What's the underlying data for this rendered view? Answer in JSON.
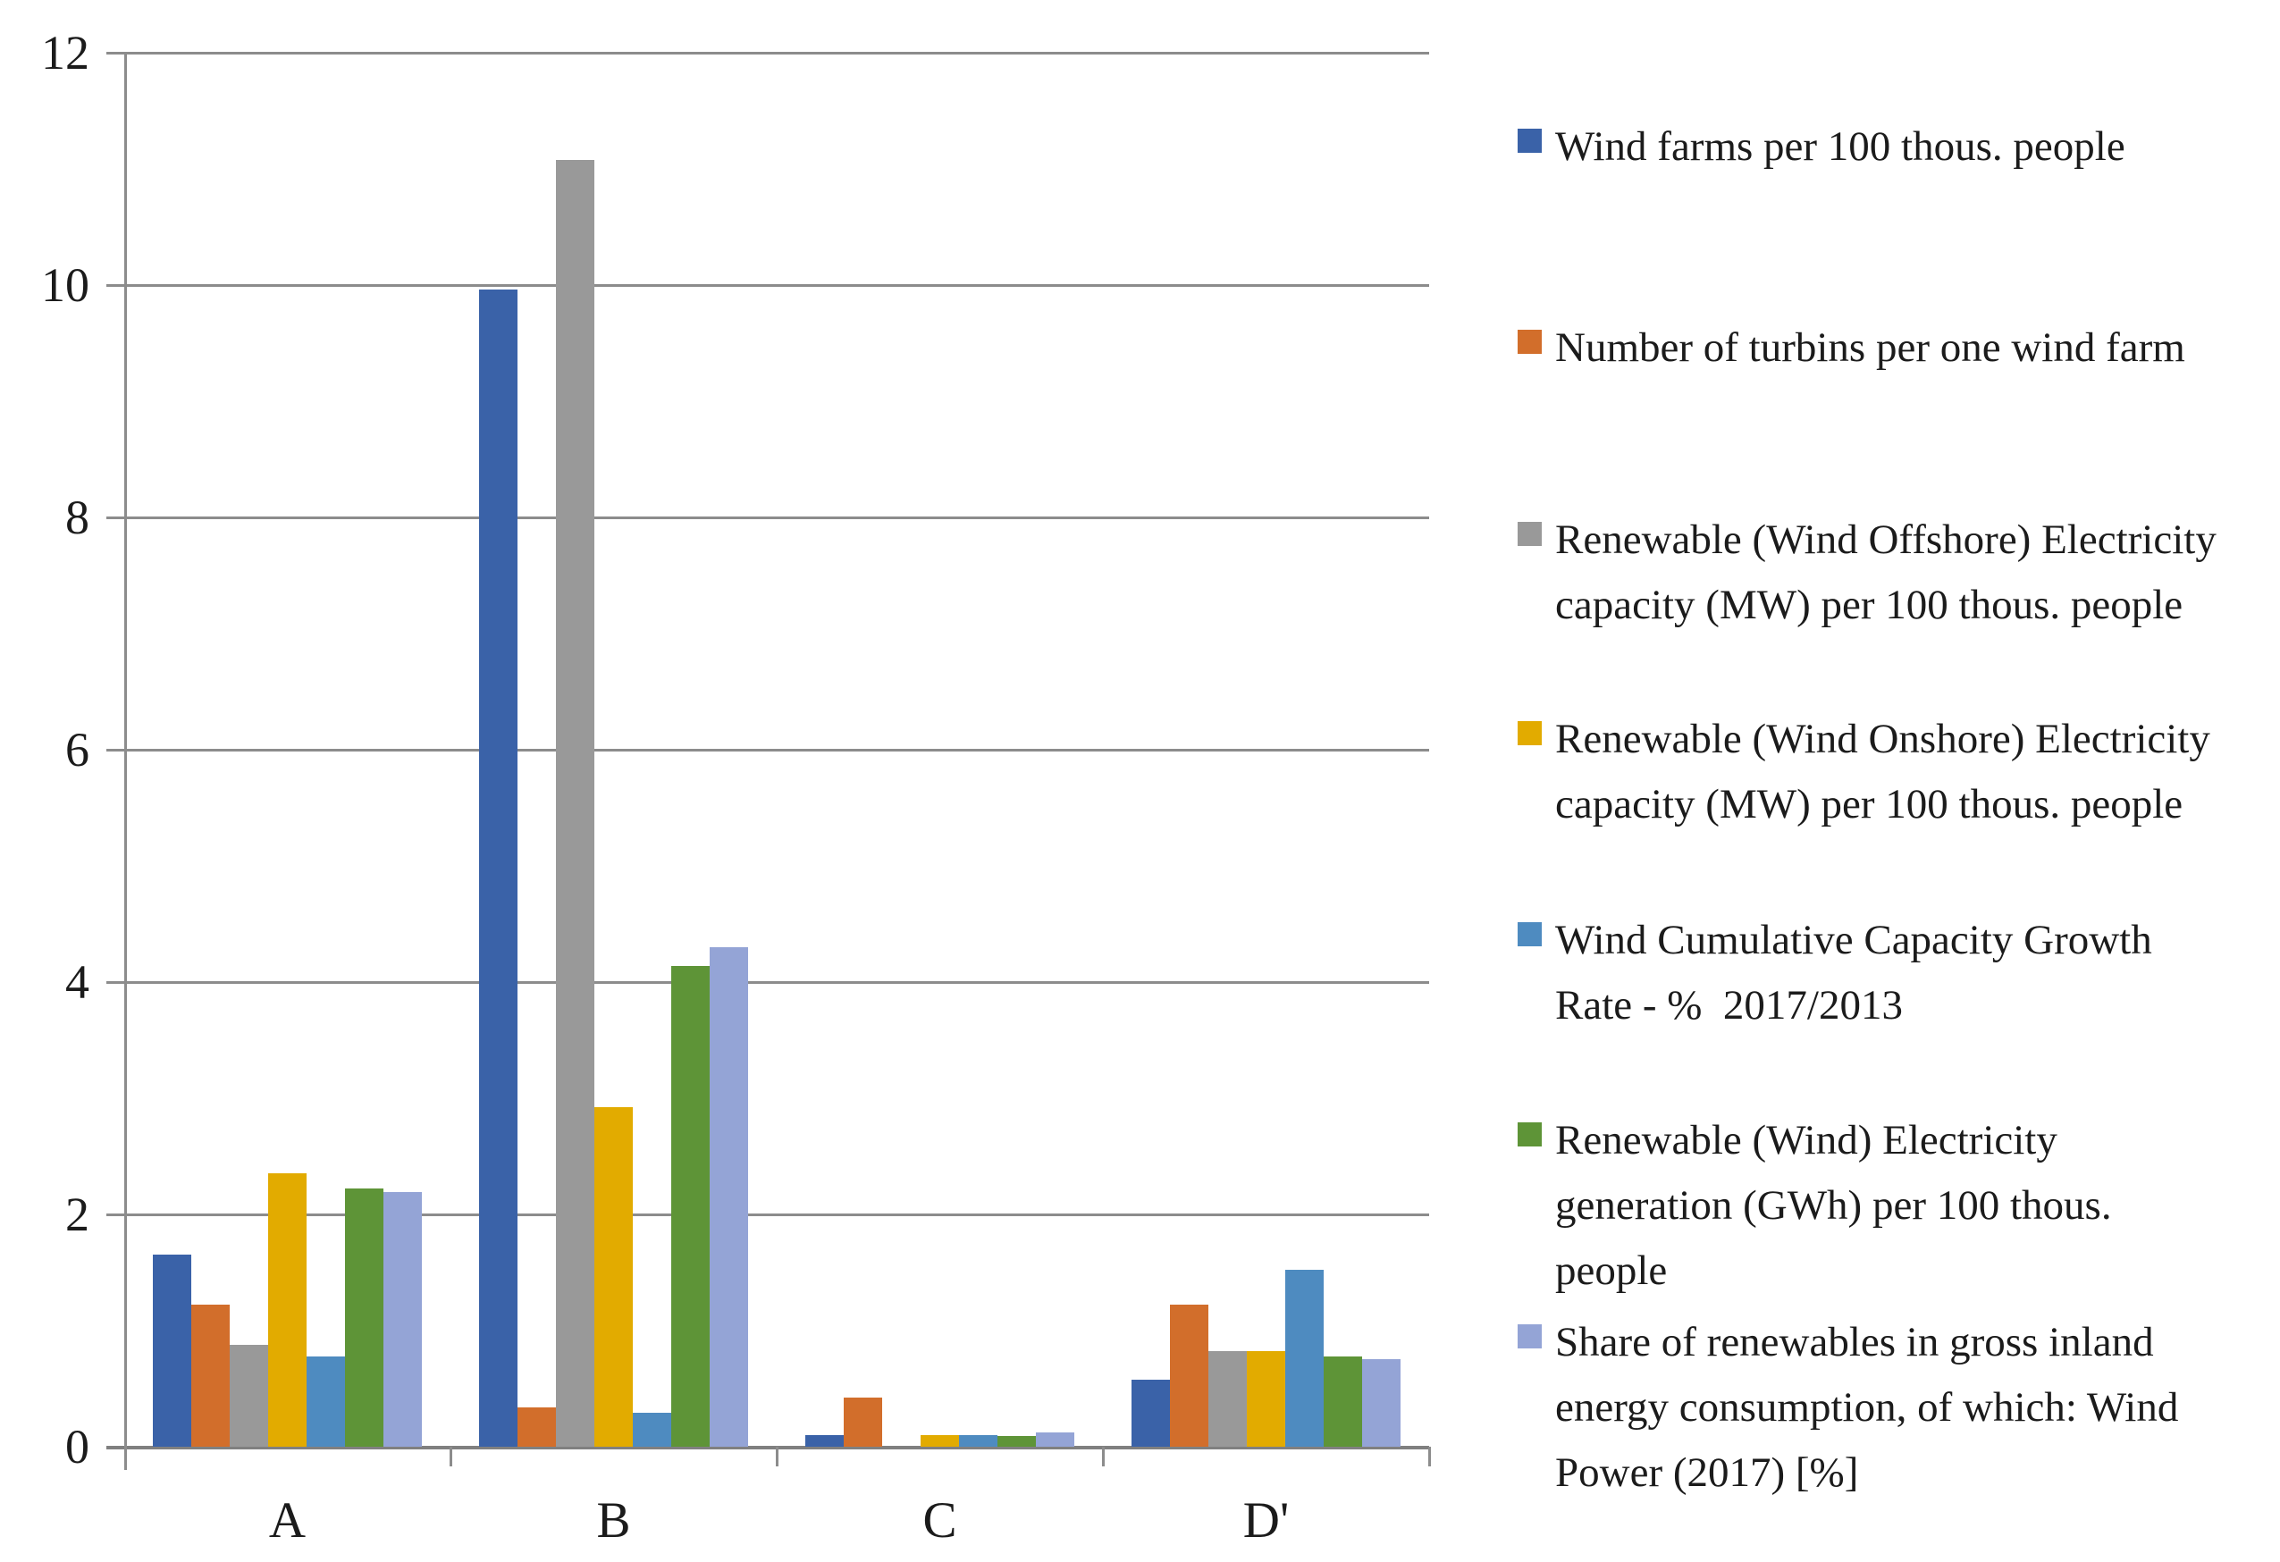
{
  "figure": {
    "background": "#ffffff",
    "text_color": "#1b1b1b",
    "gridline_color": "#8c8c8c",
    "axis_color": "#808080"
  },
  "chart_data": {
    "type": "bar",
    "title": "",
    "xlabel": "",
    "ylabel": "",
    "categories": [
      "A",
      "B",
      "C",
      "D'"
    ],
    "series": [
      {
        "name": "Wind farms per 100 thous. people",
        "color": "#3a62a8",
        "values": [
          1.65,
          9.96,
          0.1,
          0.58
        ]
      },
      {
        "name": "Number of turbins per one wind farm",
        "color": "#d26e2b",
        "values": [
          1.22,
          0.34,
          0.42,
          1.22
        ]
      },
      {
        "name": "Renewable (Wind Offshore) Electricity capacity (MW) per 100 thous. people",
        "color": "#999999",
        "values": [
          0.88,
          11.08,
          0.0,
          0.82
        ]
      },
      {
        "name": "Renewable (Wind Onshore) Electricity capacity (MW) per 100 thous. people",
        "color": "#e2ab00",
        "values": [
          2.35,
          2.92,
          0.1,
          0.82
        ]
      },
      {
        "name": "Wind Cumulative Capacity Growth Rate - % 2017/2013",
        "color": "#4e8bc0",
        "values": [
          0.78,
          0.29,
          0.1,
          1.52
        ]
      },
      {
        "name": "Renewable (Wind) Electricity generation (GWh) per 100 thous. people",
        "color": "#5e9437",
        "values": [
          2.22,
          4.14,
          0.09,
          0.78
        ]
      },
      {
        "name": "Share of renewables in gross inland energy consumption, of which: Wind Power (2017) [%]",
        "color": "#94a4d6",
        "values": [
          2.19,
          4.3,
          0.12,
          0.75
        ]
      }
    ],
    "ylim": [
      0,
      12
    ],
    "yticks": [
      0,
      2,
      4,
      6,
      8,
      10,
      12
    ],
    "grid": true,
    "legend_position": "right"
  },
  "legend": {
    "items": [
      "Wind farms per 100 thous. people",
      "Number of turbins per one wind farm",
      "Renewable (Wind Offshore) Electricity\ncapacity (MW) per 100 thous. people",
      "Renewable (Wind Onshore) Electricity\ncapacity (MW) per 100 thous. people",
      "Wind Cumulative Capacity Growth\nRate - %  2017/2013",
      "Renewable (Wind) Electricity\ngeneration (GWh) per 100 thous.\npeople",
      "Share of renewables in gross inland\nenergy consumption, of which: Wind\nPower (2017) [%]"
    ]
  }
}
